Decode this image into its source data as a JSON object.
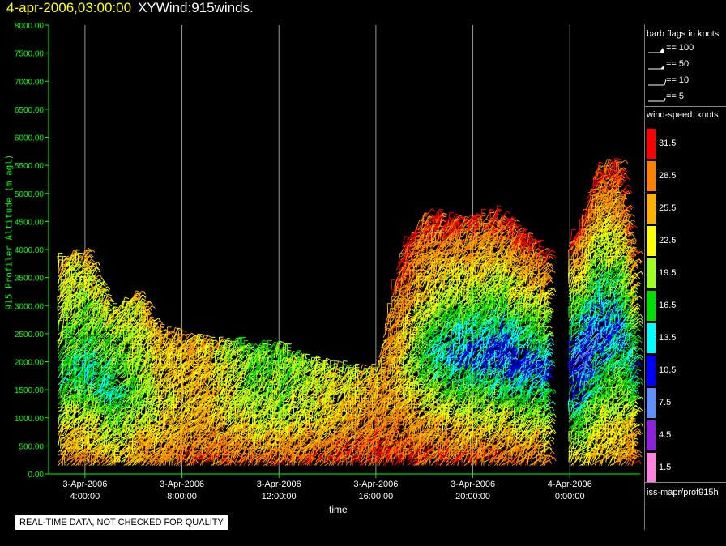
{
  "header": {
    "timestamp": "4-apr-2006,03:00:00",
    "product": "XYWind:915winds."
  },
  "legend": {
    "barb_title": "barb flags in knots",
    "barb_flags": [
      "== 100",
      "== 50",
      "== 10",
      "== 5"
    ],
    "speed_title": "wind-speed: knots",
    "speed_scale": [
      {
        "label": "31.5",
        "color": "#ff0000"
      },
      {
        "label": "28.5",
        "color": "#ff8000"
      },
      {
        "label": "25.5",
        "color": "#ffb000"
      },
      {
        "label": "22.5",
        "color": "#ffff00"
      },
      {
        "label": "19.5",
        "color": "#a0ff20"
      },
      {
        "label": "16.5",
        "color": "#00e000"
      },
      {
        "label": "13.5",
        "color": "#00ffff"
      },
      {
        "label": "10.5",
        "color": "#0000ff"
      },
      {
        "label": "7.5",
        "color": "#6090ff"
      },
      {
        "label": "4.5",
        "color": "#9020e0"
      },
      {
        "label": "1.5",
        "color": "#ff80e0"
      }
    ],
    "source_path": "iss-mapr/prof915h"
  },
  "footer": {
    "quality_notice": "REAL-TIME DATA, NOT CHECKED FOR QUALITY"
  },
  "chart_data": {
    "type": "scatter",
    "title": "4-apr-2006,03:00:00 XYWind:915winds.",
    "xlabel": "time",
    "ylabel": "915 Profiler Altitude (m agl)",
    "ylim": [
      0,
      8000
    ],
    "y_ticks": [
      "0.00",
      "500.00",
      "1000.00",
      "1500.00",
      "2000.00",
      "2500.00",
      "3000.00",
      "3500.00",
      "4000.00",
      "4500.00",
      "5000.00",
      "5500.00",
      "6000.00",
      "6500.00",
      "7000.00",
      "7500.00",
      "8000.00"
    ],
    "x_range_hours": [
      2.5,
      26.9
    ],
    "x_ticks": [
      {
        "hour": 4,
        "date": "3-Apr-2006",
        "time": "4:00:00"
      },
      {
        "hour": 8,
        "date": "3-Apr-2006",
        "time": "8:00:00"
      },
      {
        "hour": 12,
        "date": "3-Apr-2006",
        "time": "12:00:00"
      },
      {
        "hour": 16,
        "date": "3-Apr-2006",
        "time": "16:00:00"
      },
      {
        "hour": 20,
        "date": "3-Apr-2006",
        "time": "20:00:00"
      },
      {
        "hour": 24,
        "date": "4-Apr-2006",
        "time": "0:00:00"
      }
    ],
    "vertical_grid": true,
    "data_gap_hours": [
      [
        23.0,
        23.9
      ]
    ],
    "wind_speed_profile": [
      {
        "hour": 3.0,
        "top_m": 3800,
        "speed_low": 28,
        "speed_mid": 16,
        "speed_top": 24
      },
      {
        "hour": 4.0,
        "top_m": 3900,
        "speed_low": 28,
        "speed_mid": 14,
        "speed_top": 24
      },
      {
        "hour": 5.0,
        "top_m": 2800,
        "speed_low": 26,
        "speed_mid": 15,
        "speed_top": 22
      },
      {
        "hour": 6.0,
        "top_m": 3200,
        "speed_low": 27,
        "speed_mid": 18,
        "speed_top": 23
      },
      {
        "hour": 7.0,
        "top_m": 2500,
        "speed_low": 28,
        "speed_mid": 22,
        "speed_top": 26
      },
      {
        "hour": 8.0,
        "top_m": 2400,
        "speed_low": 30,
        "speed_mid": 24,
        "speed_top": 25
      },
      {
        "hour": 9.0,
        "top_m": 2300,
        "speed_low": 30,
        "speed_mid": 24,
        "speed_top": 24
      },
      {
        "hour": 10.0,
        "top_m": 2300,
        "speed_low": 30,
        "speed_mid": 22,
        "speed_top": 20
      },
      {
        "hour": 11.0,
        "top_m": 2200,
        "speed_low": 30,
        "speed_mid": 20,
        "speed_top": 18
      },
      {
        "hour": 12.0,
        "top_m": 2200,
        "speed_low": 31,
        "speed_mid": 20,
        "speed_top": 18
      },
      {
        "hour": 13.0,
        "top_m": 2000,
        "speed_low": 31,
        "speed_mid": 22,
        "speed_top": 20
      },
      {
        "hour": 14.0,
        "top_m": 1900,
        "speed_low": 31,
        "speed_mid": 24,
        "speed_top": 22
      },
      {
        "hour": 15.0,
        "top_m": 1800,
        "speed_low": 31,
        "speed_mid": 26,
        "speed_top": 22
      },
      {
        "hour": 16.0,
        "top_m": 1800,
        "speed_low": 31,
        "speed_mid": 28,
        "speed_top": 24
      },
      {
        "hour": 17.0,
        "top_m": 4000,
        "speed_low": 31,
        "speed_mid": 22,
        "speed_top": 31
      },
      {
        "hour": 18.0,
        "top_m": 4600,
        "speed_low": 31,
        "speed_mid": 16,
        "speed_top": 31
      },
      {
        "hour": 19.0,
        "top_m": 4500,
        "speed_low": 31,
        "speed_mid": 12,
        "speed_top": 31
      },
      {
        "hour": 20.0,
        "top_m": 4500,
        "speed_low": 31,
        "speed_mid": 11,
        "speed_top": 31
      },
      {
        "hour": 21.0,
        "top_m": 4600,
        "speed_low": 31,
        "speed_mid": 10,
        "speed_top": 31
      },
      {
        "hour": 22.0,
        "top_m": 4200,
        "speed_low": 30,
        "speed_mid": 10,
        "speed_top": 31
      },
      {
        "hour": 23.0,
        "top_m": 3900,
        "speed_low": 28,
        "speed_mid": 12,
        "speed_top": 31
      },
      {
        "hour": 24.3,
        "top_m": 4300,
        "speed_low": 24,
        "speed_mid": 8,
        "speed_top": 31
      },
      {
        "hour": 25.0,
        "top_m": 5400,
        "speed_low": 26,
        "speed_mid": 10,
        "speed_top": 31
      },
      {
        "hour": 26.0,
        "top_m": 5500,
        "speed_low": 28,
        "speed_mid": 12,
        "speed_top": 31
      },
      {
        "hour": 26.7,
        "top_m": 3500,
        "speed_low": 30,
        "speed_mid": 14,
        "speed_top": 28
      }
    ]
  }
}
